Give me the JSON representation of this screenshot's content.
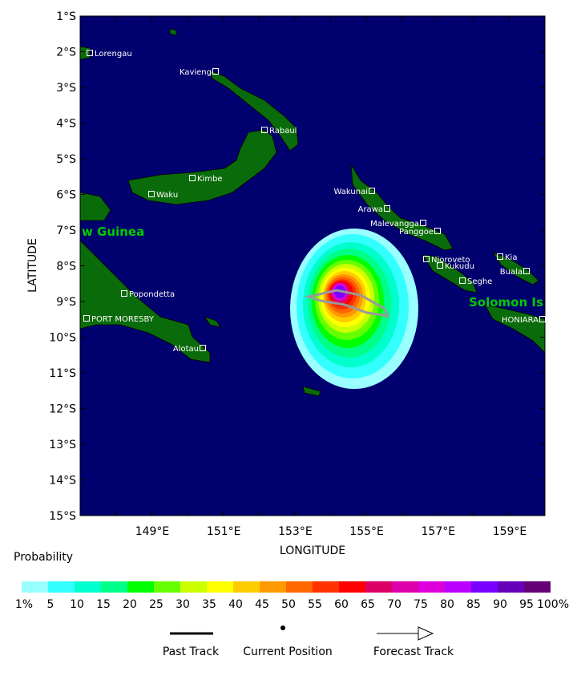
{
  "map": {
    "lat_labels": [
      "1°S",
      "2°S",
      "3°S",
      "4°S",
      "5°S",
      "6°S",
      "7°S",
      "8°S",
      "9°S",
      "10°S",
      "11°S",
      "12°S",
      "13°S",
      "14°S",
      "15°S"
    ],
    "lon_labels": [
      "149°E",
      "151°E",
      "153°E",
      "155°E",
      "157°E",
      "159°E"
    ],
    "x_axis_title": "LONGITUDE",
    "y_axis_title": "LATITUDE",
    "regions": [
      "w Guinea",
      "Solomon Is"
    ],
    "places": [
      "Lorengau",
      "Kavieng",
      "Rabaul",
      "Kimbe",
      "Waku",
      "Wakunai",
      "Arawa",
      "Malevangga",
      "Panggoe",
      "Njoroveto",
      "Kia",
      "Kukudu",
      "Buala",
      "Seghe",
      "Popondetta",
      "PORT MORESBY",
      "Alotau",
      "HONIARA"
    ]
  },
  "colorbar": {
    "title": "Probability",
    "labels": [
      "1%",
      "5",
      "10",
      "15",
      "20",
      "25",
      "30",
      "35",
      "40",
      "45",
      "50",
      "55",
      "60",
      "65",
      "70",
      "75",
      "80",
      "85",
      "90",
      "95",
      "100%"
    ],
    "colors": [
      "#99ffff",
      "#33ffff",
      "#00ffcc",
      "#00ff88",
      "#00ff00",
      "#66ff00",
      "#ccff00",
      "#ffff00",
      "#ffcc00",
      "#ff9900",
      "#ff6600",
      "#ff3300",
      "#ff0000",
      "#dd0066",
      "#dd00aa",
      "#dd00dd",
      "#bb00ff",
      "#7700ff",
      "#6600bb",
      "#660077"
    ]
  },
  "legend": {
    "items": [
      "Past Track",
      "Current Position",
      "Forecast Track"
    ]
  }
}
